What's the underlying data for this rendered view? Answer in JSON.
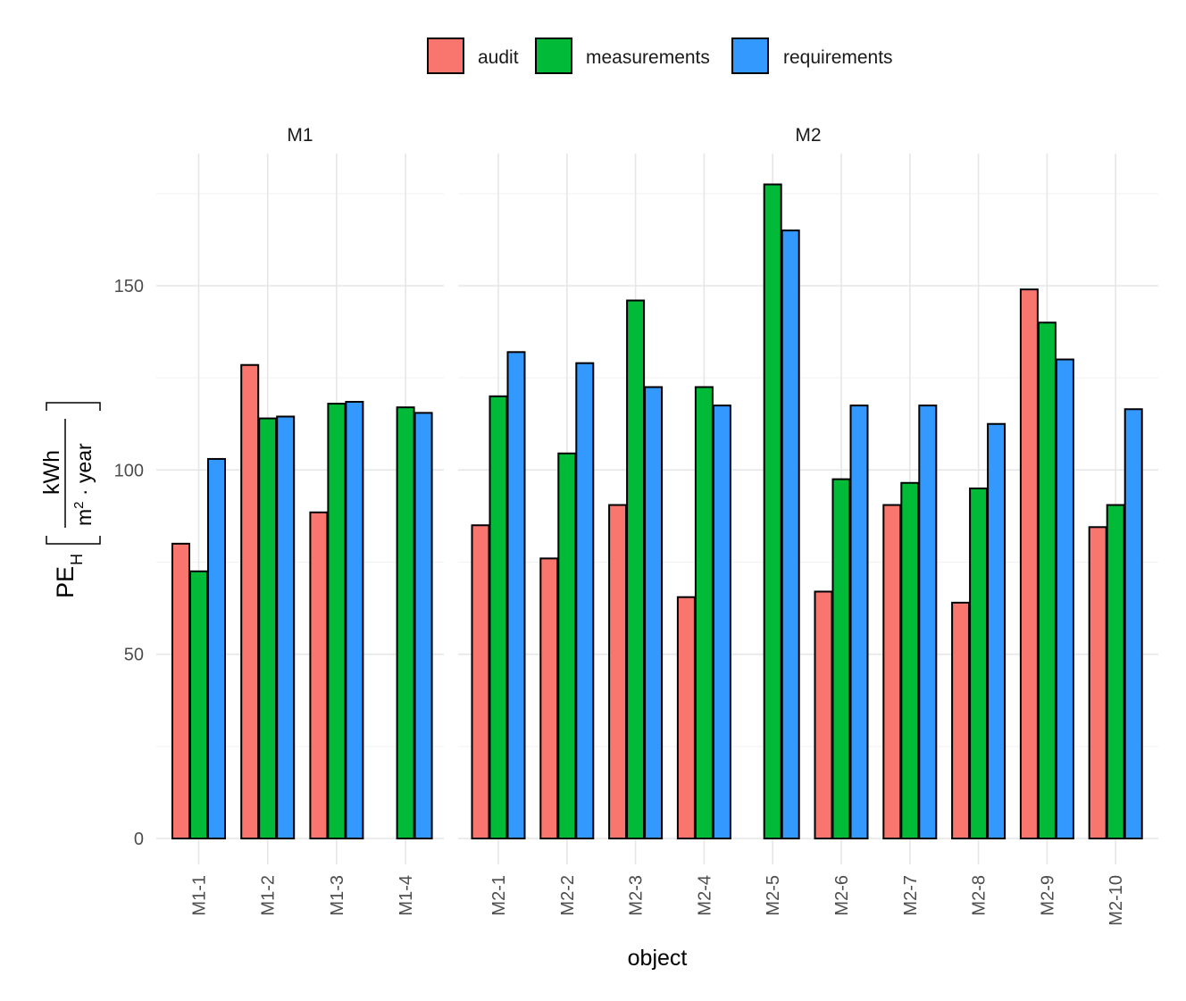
{
  "chart_data": {
    "type": "bar",
    "xlabel": "object",
    "ylabel": {
      "main": "PE",
      "subscript": "H",
      "unit_numerator": "kWh",
      "unit_denominator_base": "m",
      "unit_denominator_exponent": "2",
      "unit_denominator_rest": " · year"
    },
    "ylim": [
      0,
      185
    ],
    "yticks": [
      0,
      50,
      100,
      150
    ],
    "grid": true,
    "legend_position": "top",
    "legend": [
      {
        "name": "audit",
        "color": "#F8766D"
      },
      {
        "name": "measurements",
        "color": "#00BA38"
      },
      {
        "name": "requirements",
        "color": "#3399FF"
      }
    ],
    "panels": [
      {
        "title": "M1",
        "categories": [
          "M1-1",
          "M1-2",
          "M1-3",
          "M1-4"
        ],
        "series": [
          {
            "name": "audit",
            "values": [
              80,
              128.5,
              88.5,
              null
            ]
          },
          {
            "name": "measurements",
            "values": [
              72.5,
              114,
              118,
              117
            ]
          },
          {
            "name": "requirements",
            "values": [
              103,
              114.5,
              118.5,
              115.5
            ]
          }
        ]
      },
      {
        "title": "M2",
        "categories": [
          "M2-1",
          "M2-2",
          "M2-3",
          "M2-4",
          "M2-5",
          "M2-6",
          "M2-7",
          "M2-8",
          "M2-9",
          "M2-10"
        ],
        "series": [
          {
            "name": "audit",
            "values": [
              85,
              76,
              90.5,
              65.5,
              null,
              67,
              90.5,
              64,
              149,
              84.5
            ]
          },
          {
            "name": "measurements",
            "values": [
              120,
              104.5,
              146,
              122.5,
              177.5,
              97.5,
              96.5,
              95,
              140,
              90.5
            ]
          },
          {
            "name": "requirements",
            "values": [
              132,
              129,
              122.5,
              117.5,
              165,
              117.5,
              117.5,
              112.5,
              130,
              116.5
            ]
          }
        ]
      }
    ]
  }
}
